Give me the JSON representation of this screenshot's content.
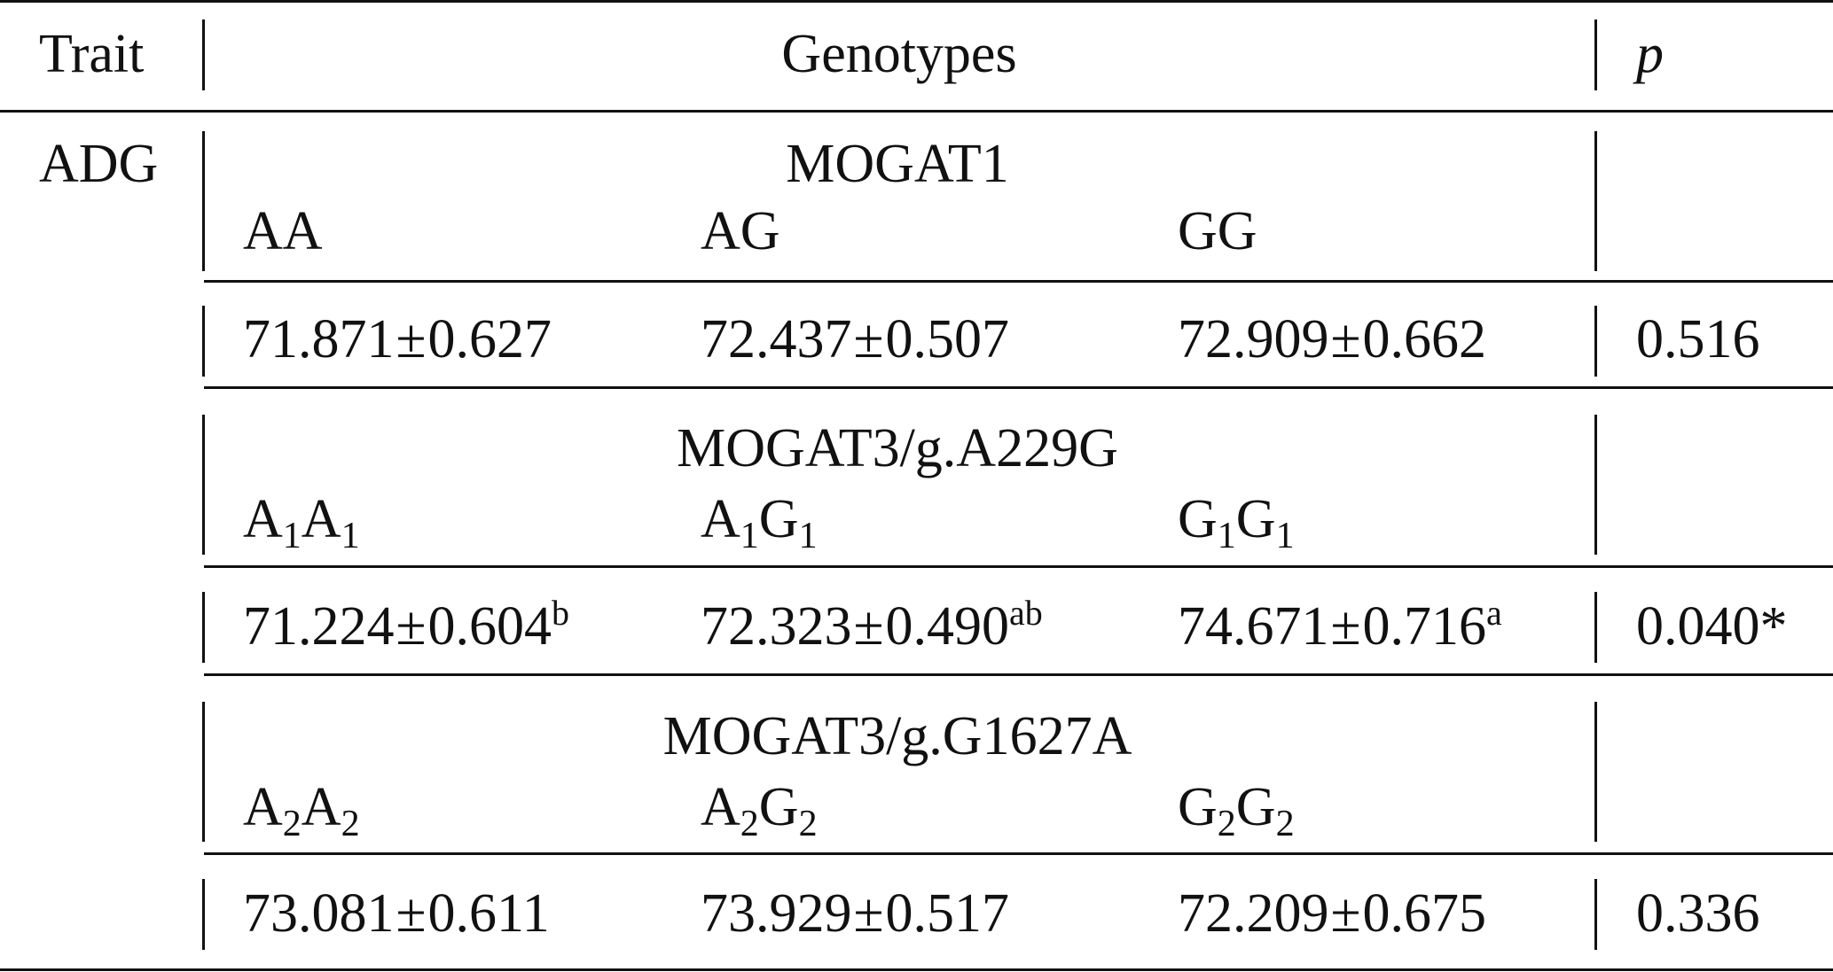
{
  "header": {
    "trait": "Trait",
    "genotypes": "Genotypes",
    "p": "p"
  },
  "trait_name": "ADG",
  "pm_symbol": "±",
  "groups": [
    {
      "gene": "MOGAT1",
      "genotypes": [
        {
          "base": "AA",
          "parts": []
        },
        {
          "base": "AG",
          "parts": []
        },
        {
          "base": "GG",
          "parts": []
        }
      ],
      "values": [
        {
          "mean": "71.871",
          "se": "0.627",
          "sup": ""
        },
        {
          "mean": "72.437",
          "se": "0.507",
          "sup": ""
        },
        {
          "mean": "72.909",
          "se": "0.662",
          "sup": ""
        }
      ],
      "p": "0.516"
    },
    {
      "gene": "MOGAT3/g.A229G",
      "genotypes": [
        {
          "parts": [
            {
              "t": "A",
              "s": "1"
            },
            {
              "t": "A",
              "s": "1"
            }
          ]
        },
        {
          "parts": [
            {
              "t": "A",
              "s": "1"
            },
            {
              "t": "G",
              "s": "1"
            }
          ]
        },
        {
          "parts": [
            {
              "t": "G",
              "s": "1"
            },
            {
              "t": "G",
              "s": "1"
            }
          ]
        }
      ],
      "values": [
        {
          "mean": "71.224",
          "se": "0.604",
          "sup": "b"
        },
        {
          "mean": "72.323",
          "se": "0.490",
          "sup": "ab"
        },
        {
          "mean": "74.671",
          "se": "0.716",
          "sup": "a"
        }
      ],
      "p": "0.040*"
    },
    {
      "gene": "MOGAT3/g.G1627A",
      "genotypes": [
        {
          "parts": [
            {
              "t": "A",
              "s": "2"
            },
            {
              "t": "A",
              "s": "2"
            }
          ]
        },
        {
          "parts": [
            {
              "t": "A",
              "s": "2"
            },
            {
              "t": "G",
              "s": "2"
            }
          ]
        },
        {
          "parts": [
            {
              "t": "G",
              "s": "2"
            },
            {
              "t": "G",
              "s": "2"
            }
          ]
        }
      ],
      "values": [
        {
          "mean": "73.081",
          "se": "0.611",
          "sup": ""
        },
        {
          "mean": "73.929",
          "se": "0.517",
          "sup": ""
        },
        {
          "mean": "72.209",
          "se": "0.675",
          "sup": ""
        }
      ],
      "p": "0.336"
    }
  ]
}
